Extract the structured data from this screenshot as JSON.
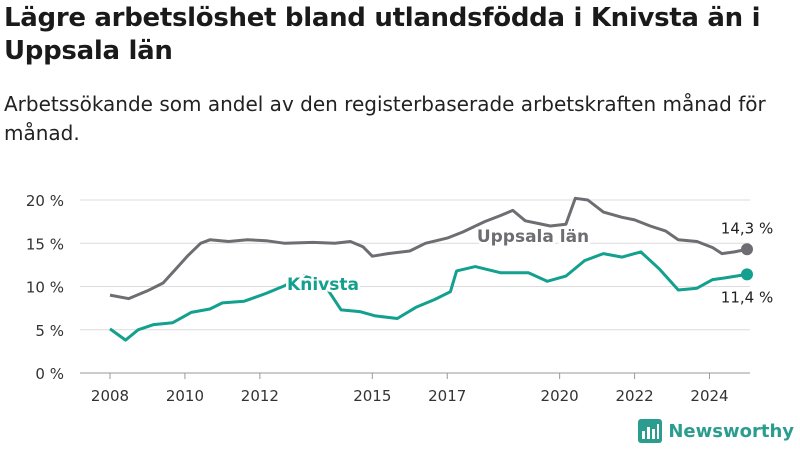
{
  "header": {
    "title": "Lägre arbetslöshet bland utlandsfödda i Knivsta än i Uppsala län",
    "subtitle": "Arbetssökande som andel av den registerbaserade arbetskraften månad för månad."
  },
  "brand": {
    "name": "Newsworthy",
    "color": "#2a9d8f"
  },
  "chart_data": {
    "type": "line",
    "ylim": [
      0,
      20
    ],
    "yticks": [
      "0 %",
      "5 %",
      "10 %",
      "15 %",
      "20 %"
    ],
    "xticks": [
      "2008",
      "2010",
      "2012",
      "2015",
      "2017",
      "2020",
      "2022",
      "2024"
    ],
    "xlim": [
      "2008-01",
      "2025-01"
    ],
    "grid": true,
    "series": [
      {
        "name": "Uppsala län",
        "color": "#6e6e72",
        "end_label": "14,3 %",
        "points": [
          [
            "2008-01",
            9.0
          ],
          [
            "2008-07",
            8.6
          ],
          [
            "2009-01",
            9.5
          ],
          [
            "2009-06",
            10.4
          ],
          [
            "2009-10",
            12.0
          ],
          [
            "2010-02",
            13.6
          ],
          [
            "2010-06",
            15.0
          ],
          [
            "2010-09",
            15.4
          ],
          [
            "2011-03",
            15.2
          ],
          [
            "2011-09",
            15.4
          ],
          [
            "2012-03",
            15.3
          ],
          [
            "2012-09",
            15.0
          ],
          [
            "2013-06",
            15.1
          ],
          [
            "2014-01",
            15.0
          ],
          [
            "2014-06",
            15.2
          ],
          [
            "2014-10",
            14.6
          ],
          [
            "2015-01",
            13.5
          ],
          [
            "2015-06",
            13.8
          ],
          [
            "2016-01",
            14.1
          ],
          [
            "2016-06",
            15.0
          ],
          [
            "2017-01",
            15.6
          ],
          [
            "2017-06",
            16.3
          ],
          [
            "2018-01",
            17.5
          ],
          [
            "2018-06",
            18.2
          ],
          [
            "2018-10",
            18.8
          ],
          [
            "2019-02",
            17.6
          ],
          [
            "2019-06",
            17.3
          ],
          [
            "2019-10",
            17.0
          ],
          [
            "2020-03",
            17.2
          ],
          [
            "2020-06",
            20.2
          ],
          [
            "2020-10",
            20.0
          ],
          [
            "2021-03",
            18.6
          ],
          [
            "2021-09",
            18.0
          ],
          [
            "2022-01",
            17.7
          ],
          [
            "2022-06",
            17.0
          ],
          [
            "2022-11",
            16.4
          ],
          [
            "2023-03",
            15.4
          ],
          [
            "2023-09",
            15.2
          ],
          [
            "2024-02",
            14.5
          ],
          [
            "2024-05",
            13.8
          ],
          [
            "2024-09",
            14.0
          ],
          [
            "2025-01",
            14.3
          ]
        ]
      },
      {
        "name": "Knivsta",
        "color": "#13a08e",
        "end_label": "11,4 %",
        "points": [
          [
            "2008-01",
            5.1
          ],
          [
            "2008-06",
            3.8
          ],
          [
            "2008-10",
            5.0
          ],
          [
            "2009-03",
            5.6
          ],
          [
            "2009-09",
            5.8
          ],
          [
            "2010-03",
            7.0
          ],
          [
            "2010-09",
            7.4
          ],
          [
            "2011-01",
            8.1
          ],
          [
            "2011-08",
            8.3
          ],
          [
            "2012-03",
            9.2
          ],
          [
            "2012-09",
            10.1
          ],
          [
            "2013-03",
            11.2
          ],
          [
            "2013-09",
            10.6
          ],
          [
            "2014-03",
            7.3
          ],
          [
            "2014-09",
            7.1
          ],
          [
            "2015-02",
            6.6
          ],
          [
            "2015-09",
            6.3
          ],
          [
            "2016-03",
            7.6
          ],
          [
            "2016-09",
            8.5
          ],
          [
            "2017-02",
            9.4
          ],
          [
            "2017-04",
            11.8
          ],
          [
            "2017-10",
            12.3
          ],
          [
            "2018-06",
            11.6
          ],
          [
            "2019-03",
            11.6
          ],
          [
            "2019-09",
            10.6
          ],
          [
            "2020-03",
            11.2
          ],
          [
            "2020-09",
            13.0
          ],
          [
            "2021-03",
            13.8
          ],
          [
            "2021-09",
            13.4
          ],
          [
            "2022-03",
            14.0
          ],
          [
            "2022-09",
            12.0
          ],
          [
            "2023-03",
            9.6
          ],
          [
            "2023-09",
            9.8
          ],
          [
            "2024-02",
            10.8
          ],
          [
            "2024-06",
            11.0
          ],
          [
            "2025-01",
            11.4
          ]
        ]
      }
    ]
  }
}
